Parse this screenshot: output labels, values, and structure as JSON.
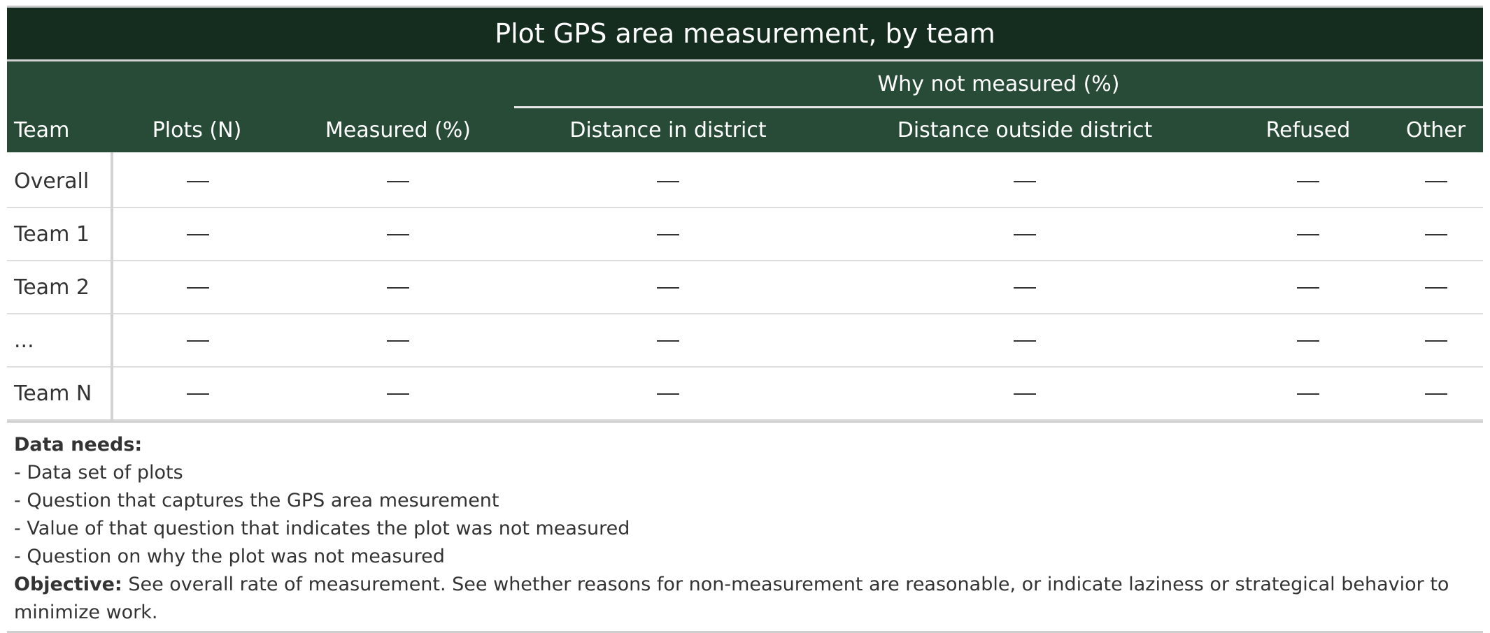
{
  "title": "Plot GPS area measurement, by team",
  "spanner": "Why not measured (%)",
  "columns": [
    "Team",
    "Plots (N)",
    "Measured (%)",
    "Distance in district",
    "Distance outside district",
    "Refused",
    "Other"
  ],
  "rows": [
    {
      "team": "Overall",
      "cells": [
        "—",
        "—",
        "—",
        "—",
        "—",
        "—"
      ]
    },
    {
      "team": "Team 1",
      "cells": [
        "—",
        "—",
        "—",
        "—",
        "—",
        "—"
      ]
    },
    {
      "team": "Team 2",
      "cells": [
        "—",
        "—",
        "—",
        "—",
        "—",
        "—"
      ]
    },
    {
      "team": "...",
      "cells": [
        "—",
        "—",
        "—",
        "—",
        "—",
        "—"
      ]
    },
    {
      "team": "Team N",
      "cells": [
        "—",
        "—",
        "—",
        "—",
        "—",
        "—"
      ]
    }
  ],
  "notes": {
    "needs_label": "Data needs:",
    "needs": [
      "- Data set of plots",
      "- Question that captures the GPS area mesurement",
      "- Value of that question that indicates the plot was not measured",
      "- Question on why the plot was not measured"
    ],
    "objective_label": "Objective:",
    "objective_text": " See overall rate of measurement. See whether reasons for non-measurement are reasonable, or indicate laziness or strategical behavior to minimize work."
  },
  "colors": {
    "title_bg": "#142d1f",
    "header_bg": "#284b37"
  }
}
